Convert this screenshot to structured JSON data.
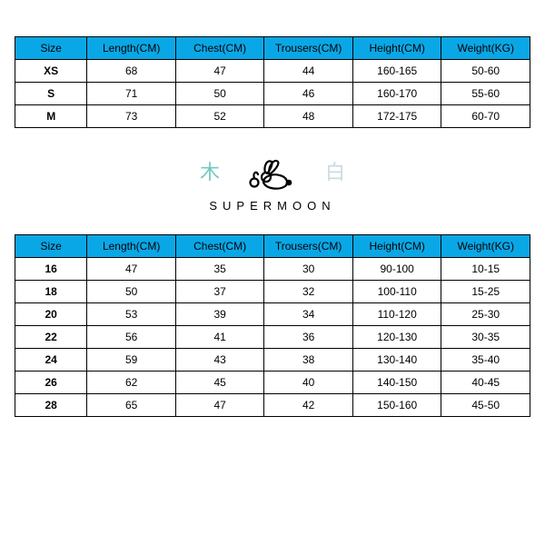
{
  "colors": {
    "header_bg": "#0aa7e6",
    "border": "#000000",
    "text": "#000000",
    "bg": "#ffffff",
    "cjk_left": "#75c8c2",
    "cjk_right": "#c9dbe1"
  },
  "adult_table": {
    "type": "table",
    "columns": [
      "Size",
      "Length(CM)",
      "Chest(CM)",
      "Trousers(CM)",
      "Height(CM)",
      "Weight(KG)"
    ],
    "rows": [
      [
        "XS",
        "68",
        "47",
        "44",
        "160-165",
        "50-60"
      ],
      [
        "S",
        "71",
        "50",
        "46",
        "160-170",
        "55-60"
      ],
      [
        "M",
        "73",
        "52",
        "48",
        "172-175",
        "60-70"
      ]
    ]
  },
  "logo": {
    "cjk_left": "木",
    "cjk_right": "白",
    "brand": "SUPERMOON"
  },
  "kids_table": {
    "type": "table",
    "columns": [
      "Size",
      "Length(CM)",
      "Chest(CM)",
      "Trousers(CM)",
      "Height(CM)",
      "Weight(KG)"
    ],
    "rows": [
      [
        "16",
        "47",
        "35",
        "30",
        "90-100",
        "10-15"
      ],
      [
        "18",
        "50",
        "37",
        "32",
        "100-110",
        "15-25"
      ],
      [
        "20",
        "53",
        "39",
        "34",
        "110-120",
        "25-30"
      ],
      [
        "22",
        "56",
        "41",
        "36",
        "120-130",
        "30-35"
      ],
      [
        "24",
        "59",
        "43",
        "38",
        "130-140",
        "35-40"
      ],
      [
        "26",
        "62",
        "45",
        "40",
        "140-150",
        "40-45"
      ],
      [
        "28",
        "65",
        "47",
        "42",
        "150-160",
        "45-50"
      ]
    ]
  }
}
